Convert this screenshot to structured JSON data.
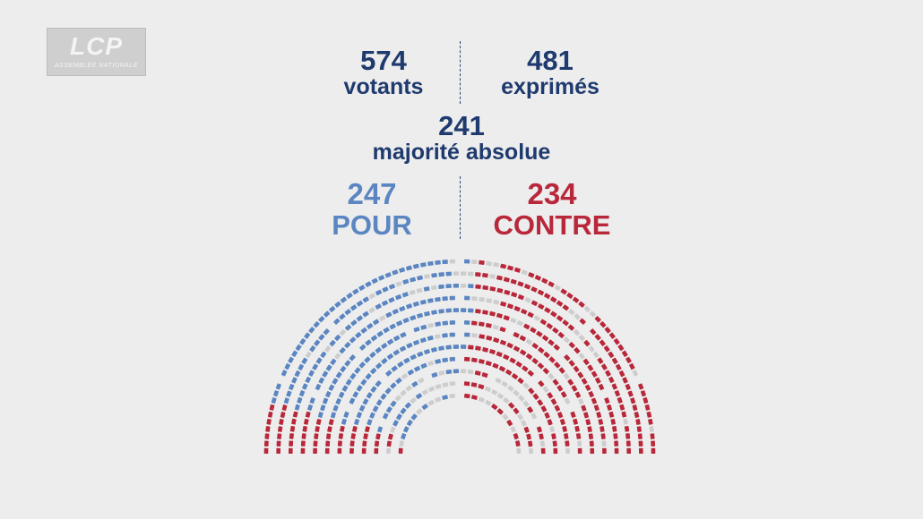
{
  "logo": {
    "mark": "LCP",
    "subtitle": "ASSEMBLÉE NATIONALE"
  },
  "stats": {
    "votants": {
      "value": "574",
      "label": "votants"
    },
    "exprimes": {
      "value": "481",
      "label": "exprimés"
    },
    "majorite": {
      "value": "241",
      "label": "majorité absolue"
    },
    "pour": {
      "value": "247",
      "label": "POUR"
    },
    "contre": {
      "value": "234",
      "label": "CONTRE"
    }
  },
  "colors": {
    "background": "#ededed",
    "navy": "#1f3a6e",
    "pour": "#5b86c2",
    "contre": "#b8283a",
    "absent": "#cdcdcd",
    "abstention": "#ffffff"
  },
  "chart_data": {
    "type": "hemicycle",
    "title": "",
    "categories": [
      "pour",
      "contre",
      "absent",
      "abstention"
    ],
    "values": [
      247,
      234,
      93,
      0
    ],
    "legend": ""
  }
}
